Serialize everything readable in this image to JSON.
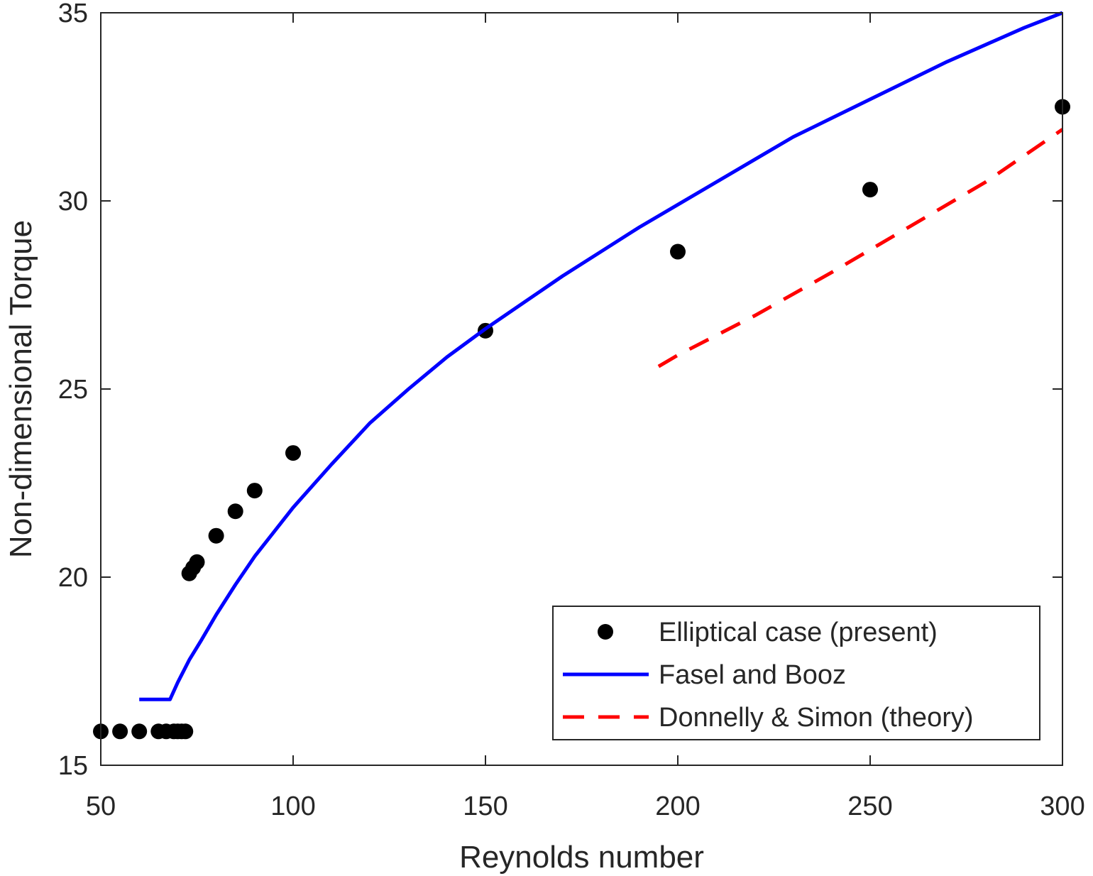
{
  "chart_data": {
    "type": "line",
    "title": "",
    "xlabel": "Reynolds number",
    "ylabel": "Non-dimensional Torque",
    "xlim": [
      50,
      300
    ],
    "ylim": [
      15,
      35
    ],
    "xticks": [
      50,
      100,
      150,
      200,
      250,
      300
    ],
    "yticks": [
      15,
      20,
      25,
      30,
      35
    ],
    "xtick_labels": [
      "50",
      "100",
      "150",
      "200",
      "250",
      "300"
    ],
    "ytick_labels": [
      "15",
      "20",
      "25",
      "30",
      "35"
    ],
    "grid": false,
    "legend_position": "bottom-right",
    "series": [
      {
        "name": "Elliptical case (present)",
        "style": "markers",
        "color": "#000000",
        "x": [
          50,
          55,
          60,
          65,
          67,
          69,
          70,
          71,
          72,
          73,
          74,
          75,
          80,
          85,
          90,
          100,
          150,
          200,
          250,
          300
        ],
        "y": [
          15.9,
          15.9,
          15.9,
          15.9,
          15.9,
          15.9,
          15.9,
          15.9,
          15.9,
          20.1,
          20.25,
          20.4,
          21.1,
          21.75,
          22.3,
          23.3,
          26.55,
          28.65,
          30.3,
          32.5
        ]
      },
      {
        "name": "Fasel and Booz",
        "style": "solid",
        "color": "#0000ff",
        "x": [
          60,
          68,
          70,
          73,
          76,
          80,
          85,
          90,
          100,
          110,
          120,
          130,
          140,
          150,
          160,
          170,
          180,
          190,
          200,
          210,
          220,
          230,
          240,
          250,
          260,
          270,
          280,
          290,
          300
        ],
        "y": [
          16.75,
          16.75,
          17.2,
          17.8,
          18.3,
          19.0,
          19.8,
          20.55,
          21.85,
          23.0,
          24.1,
          25.0,
          25.85,
          26.6,
          27.3,
          28.0,
          28.65,
          29.3,
          29.9,
          30.5,
          31.1,
          31.7,
          32.2,
          32.7,
          33.2,
          33.7,
          34.15,
          34.6,
          35.0
        ]
      },
      {
        "name": "Donnelly & Simon (theory)",
        "style": "dashed",
        "color": "#ff0000",
        "x": [
          195,
          200,
          220,
          240,
          260,
          280,
          300
        ],
        "y": [
          25.6,
          25.9,
          26.95,
          28.1,
          29.3,
          30.5,
          31.9
        ]
      }
    ]
  }
}
